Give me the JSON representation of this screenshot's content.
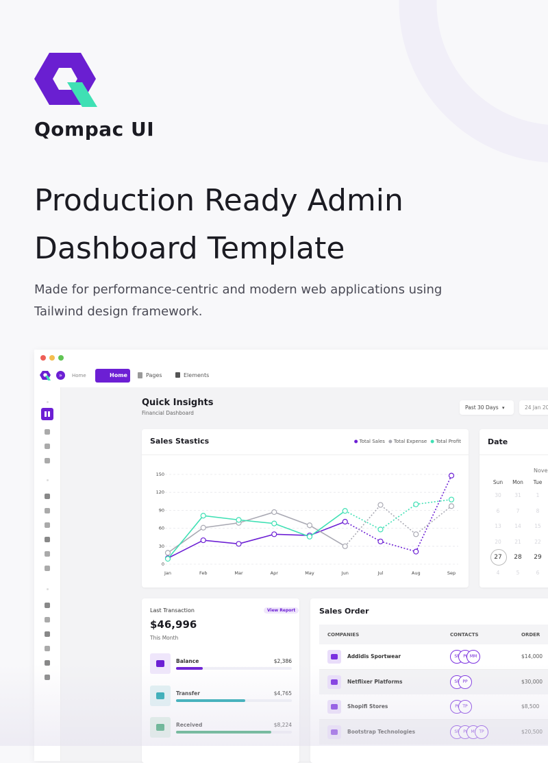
{
  "brand": {
    "name": "Qompac UI"
  },
  "hero": {
    "title_lines": [
      "Production Ready Admin",
      "Dashboard Template"
    ],
    "description_lines": [
      "Made for performance-centric and modern web applications using",
      "Tailwind design framework."
    ]
  },
  "dashboard": {
    "nav": {
      "breadcrumb": "Home",
      "tabs": [
        "Home",
        "Pages",
        "Elements"
      ]
    },
    "page_title": "Quick Insights",
    "page_subtitle": "Financial Dashboard",
    "range_select": "Past 30 Days",
    "date_input": "24 Jan 20",
    "date_card": {
      "title": "Date",
      "month": "Nove",
      "weekdays": [
        "Sun",
        "Mon",
        "Tue"
      ],
      "weeks": [
        [
          30,
          31,
          1
        ],
        [
          6,
          7,
          8
        ],
        [
          13,
          14,
          15
        ],
        [
          20,
          21,
          22
        ],
        [
          27,
          28,
          29
        ],
        [
          4,
          5,
          6
        ]
      ]
    },
    "transaction": {
      "title": "Last Transaction",
      "action": "View Report",
      "amount": "$46,996",
      "period": "This Month",
      "items": [
        {
          "label": "Balance",
          "value": "$2,386",
          "progress": 23,
          "color": "#6c1fd4",
          "tile": "#efe6fb"
        },
        {
          "label": "Transfer",
          "value": "$4,765",
          "progress": 60,
          "color": "#16a3ad",
          "tile": "#dff1f3"
        },
        {
          "label": "Received",
          "value": "$8,224",
          "progress": 82,
          "color": "#1e9a5e",
          "tile": "#dcefe4"
        }
      ]
    },
    "sales_order": {
      "title": "Sales Order",
      "columns": [
        "COMPANIES",
        "CONTACTS",
        "ORDER"
      ],
      "rows": [
        {
          "company": "Addidis Sportwear",
          "contacts": [
            "SF",
            "PI",
            "MM"
          ],
          "order": "$14,000"
        },
        {
          "company": "Netflixer Platforms",
          "contacts": [
            "SF",
            "PP"
          ],
          "order": "$30,000"
        },
        {
          "company": "Shopifi Stores",
          "contacts": [
            "PI",
            "TP"
          ],
          "order": "$8,500"
        },
        {
          "company": "Bootstrap Technologies",
          "contacts": [
            "SF",
            "PI",
            "MI",
            "TP"
          ],
          "order": "$20,500"
        }
      ]
    }
  },
  "chart_data": {
    "type": "line",
    "title": "Sales Stastics",
    "categories": [
      "Jan",
      "Feb",
      "Mar",
      "Apr",
      "May",
      "Jun",
      "Jul",
      "Aug",
      "Sep"
    ],
    "series": [
      {
        "name": "Total Sales",
        "color": "#6c1fd4",
        "values": [
          10,
          40,
          34,
          50,
          48,
          71,
          38,
          21,
          148
        ]
      },
      {
        "name": "Total Expense",
        "color": "#a9a9b3",
        "values": [
          19,
          61,
          69,
          87,
          65,
          30,
          99,
          50,
          97
        ]
      },
      {
        "name": "Total Profit",
        "color": "#3fe0b4",
        "values": [
          9,
          81,
          74,
          68,
          46,
          89,
          58,
          100,
          108
        ]
      }
    ],
    "ylim": [
      0,
      150
    ],
    "yticks": [
      0,
      30,
      60,
      90,
      120,
      150
    ],
    "grid": true,
    "dashed_from": "Jun"
  }
}
